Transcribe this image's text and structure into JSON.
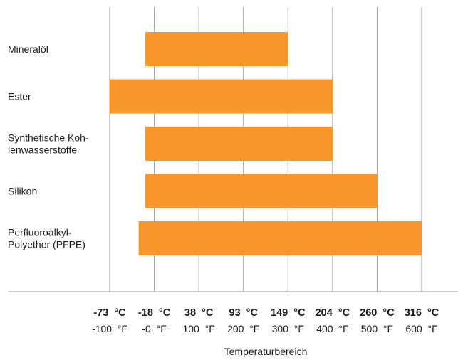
{
  "chart_data": {
    "type": "bar",
    "orientation": "horizontal",
    "style": "floating-range",
    "bar_color": "#F7962B",
    "grid": "vertical",
    "categories": [
      [
        "Mineralöl"
      ],
      [
        "Ester"
      ],
      [
        "Synthetische Koh-",
        "lenwasserstoffe"
      ],
      [
        "Silikon"
      ],
      [
        "Perfluoroalkyl-",
        "Polyether (PFPE)"
      ]
    ],
    "ranges_f": [
      [
        -20,
        300
      ],
      [
        -100,
        400
      ],
      [
        -20,
        400
      ],
      [
        -20,
        500
      ],
      [
        -35,
        600
      ]
    ],
    "x_ticks_f": [
      -100,
      0,
      100,
      200,
      300,
      400,
      500,
      600
    ],
    "tick_labels_c": [
      "-73  °C",
      "-18  °C",
      "38  °C",
      "93  °C",
      "149  °C",
      "204  °C",
      "260  °C",
      "316  °C"
    ],
    "tick_labels_f": [
      "-100  °F",
      "-0  °F",
      "100  °F",
      "200  °F",
      "300  °F",
      "400  °F",
      "500  °F",
      "600  °F"
    ],
    "xlabel": "Temperaturbereich",
    "xlim_f": [
      -100,
      600
    ]
  }
}
